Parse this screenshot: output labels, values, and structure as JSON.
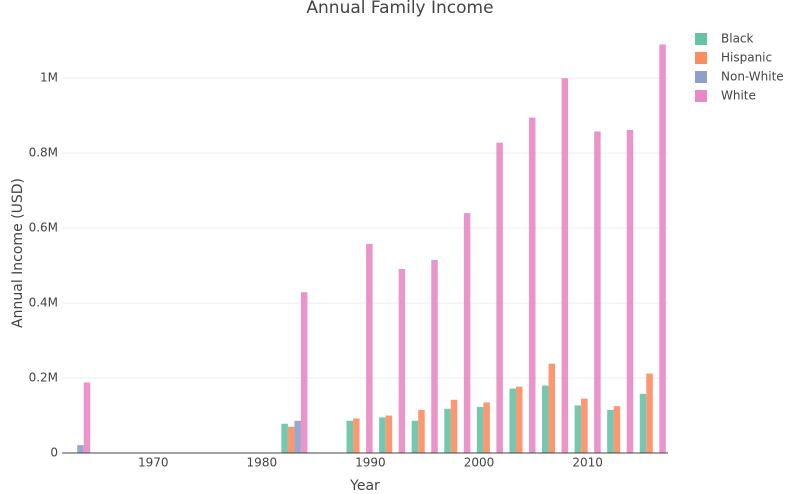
{
  "chart_data": {
    "type": "bar",
    "title": "Annual Family Income",
    "x_label": "Year",
    "y_label": "Annual Income (USD)",
    "x": [
      1963,
      1983,
      1989,
      1992,
      1995,
      1998,
      2001,
      2004,
      2007,
      2010,
      2013,
      2016
    ],
    "series": [
      {
        "name": "Black",
        "color": "#66c2a5",
        "values": [
          null,
          78000,
          86000,
          95000,
          86000,
          118000,
          123000,
          172000,
          180000,
          127000,
          115000,
          158000
        ]
      },
      {
        "name": "Hispanic",
        "color": "#fc8d62",
        "values": [
          null,
          70000,
          92000,
          100000,
          115000,
          142000,
          135000,
          177000,
          238000,
          145000,
          125000,
          212000
        ]
      },
      {
        "name": "Non-White",
        "color": "#8da0cb",
        "values": [
          21000,
          86000,
          null,
          null,
          null,
          null,
          null,
          null,
          null,
          null,
          null,
          null
        ]
      },
      {
        "name": "White",
        "color": "#e78ac3",
        "values": [
          188000,
          429000,
          558000,
          491000,
          515000,
          640000,
          828000,
          895000,
          1000000,
          858000,
          862000,
          1090000
        ]
      }
    ],
    "xlim": [
      1961.6,
      2017.4
    ],
    "xticks": [
      1970,
      1980,
      1990,
      2000,
      2010
    ],
    "ylim": [
      0,
      1150000
    ],
    "yticks": [
      0,
      {
        "value": 200000,
        "label": "0.2M"
      },
      {
        "value": 400000,
        "label": "0.4M"
      },
      {
        "value": 600000,
        "label": "0.6M"
      },
      {
        "value": 800000,
        "label": "0.8M"
      },
      {
        "value": 1000000,
        "label": "1M"
      }
    ],
    "grid": true,
    "legend_position": "top-right"
  }
}
